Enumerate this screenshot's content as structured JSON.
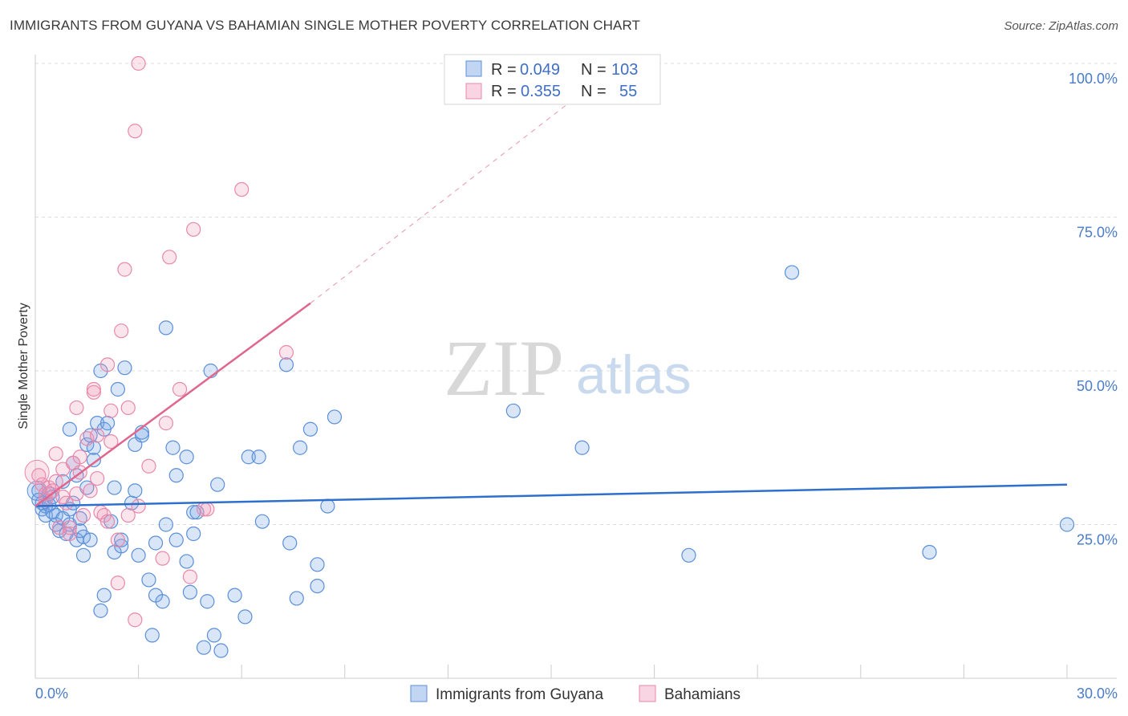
{
  "title": "IMMIGRANTS FROM GUYANA VS BAHAMIAN SINGLE MOTHER POVERTY CORRELATION CHART",
  "source": "Source: ZipAtlas.com",
  "watermark": {
    "zip": "ZIP",
    "atlas": "atlas"
  },
  "colors": {
    "guyana": "#5b8fd8",
    "guyana_fill": "rgba(120,165,230,0.28)",
    "guyana_line": "#2f6fcc",
    "bahamian": "#e888aa",
    "bahamian_fill": "rgba(240,150,185,0.25)",
    "bahamian_line": "#e0668e",
    "grid": "#dddddd",
    "axis": "#cccccc"
  },
  "legend": {
    "row1": {
      "r_label": "R =",
      "r_value": "0.049",
      "n_label": "N =",
      "n_value": "103"
    },
    "row2": {
      "r_label": "R =",
      "r_value": "0.355",
      "n_label": "N =",
      "n_value": "55"
    }
  },
  "chart_data": {
    "type": "scatter",
    "title": "IMMIGRANTS FROM GUYANA VS BAHAMIAN SINGLE MOTHER POVERTY CORRELATION CHART",
    "xlabel": "",
    "ylabel": "Single Mother Poverty",
    "xlim": [
      0,
      30
    ],
    "ylim": [
      0,
      100
    ],
    "x_tick_labels": [
      "0.0%",
      "30.0%"
    ],
    "y_ticks": [
      25,
      50,
      75,
      100
    ],
    "y_tick_labels": [
      "25.0%",
      "50.0%",
      "75.0%",
      "100.0%"
    ],
    "grid": true,
    "series": [
      {
        "name": "Immigrants from Guyana",
        "r": 0.049,
        "n": 103,
        "trend": {
          "x0": 0,
          "y0": 28.0,
          "x1": 30,
          "y1": 31.5
        },
        "points": [
          [
            0.1,
            30.5
          ],
          [
            0.1,
            29.0
          ],
          [
            0.2,
            28.5
          ],
          [
            0.2,
            27.5
          ],
          [
            0.3,
            28.0
          ],
          [
            0.3,
            26.5
          ],
          [
            0.4,
            30.0
          ],
          [
            0.4,
            28.2
          ],
          [
            0.5,
            27.0
          ],
          [
            0.5,
            29.5
          ],
          [
            0.6,
            25.0
          ],
          [
            0.6,
            26.5
          ],
          [
            0.7,
            24.0
          ],
          [
            0.8,
            26.0
          ],
          [
            0.8,
            32.0
          ],
          [
            0.9,
            23.5
          ],
          [
            1.0,
            27.5
          ],
          [
            1.0,
            25.0
          ],
          [
            1.0,
            40.5
          ],
          [
            1.1,
            28.5
          ],
          [
            1.1,
            35.0
          ],
          [
            1.2,
            22.5
          ],
          [
            1.2,
            33.0
          ],
          [
            1.3,
            24.0
          ],
          [
            1.3,
            26.0
          ],
          [
            1.4,
            23.0
          ],
          [
            1.4,
            20.0
          ],
          [
            1.5,
            31.0
          ],
          [
            1.5,
            38.0
          ],
          [
            1.6,
            22.5
          ],
          [
            1.6,
            39.5
          ],
          [
            1.7,
            35.5
          ],
          [
            1.7,
            37.5
          ],
          [
            1.8,
            41.5
          ],
          [
            1.9,
            11.0
          ],
          [
            1.9,
            50.0
          ],
          [
            2.0,
            40.5
          ],
          [
            2.0,
            13.5
          ],
          [
            2.1,
            41.5
          ],
          [
            2.2,
            25.5
          ],
          [
            2.3,
            20.5
          ],
          [
            2.3,
            31.0
          ],
          [
            2.4,
            47.0
          ],
          [
            2.5,
            21.5
          ],
          [
            2.5,
            22.5
          ],
          [
            2.6,
            50.5
          ],
          [
            2.8,
            28.5
          ],
          [
            2.9,
            38.0
          ],
          [
            2.9,
            30.5
          ],
          [
            3.0,
            20.0
          ],
          [
            3.1,
            40.0
          ],
          [
            3.1,
            39.5
          ],
          [
            3.3,
            16.0
          ],
          [
            3.4,
            7.0
          ],
          [
            3.5,
            22.0
          ],
          [
            3.5,
            13.5
          ],
          [
            3.7,
            12.5
          ],
          [
            3.8,
            25.0
          ],
          [
            3.8,
            57.0
          ],
          [
            4.0,
            37.5
          ],
          [
            4.1,
            22.5
          ],
          [
            4.1,
            33.0
          ],
          [
            4.4,
            36.0
          ],
          [
            4.4,
            19.0
          ],
          [
            4.5,
            14.0
          ],
          [
            4.6,
            27.0
          ],
          [
            4.6,
            23.5
          ],
          [
            4.7,
            27.0
          ],
          [
            4.9,
            5.0
          ],
          [
            5.0,
            12.5
          ],
          [
            5.1,
            50.0
          ],
          [
            5.2,
            7.0
          ],
          [
            5.3,
            31.5
          ],
          [
            5.4,
            4.5
          ],
          [
            5.8,
            13.5
          ],
          [
            6.1,
            10.0
          ],
          [
            6.2,
            36.0
          ],
          [
            6.5,
            36.0
          ],
          [
            6.6,
            25.5
          ],
          [
            7.3,
            51.0
          ],
          [
            7.4,
            22.0
          ],
          [
            7.6,
            13.0
          ],
          [
            7.7,
            37.5
          ],
          [
            8.0,
            40.5
          ],
          [
            8.2,
            15.0
          ],
          [
            8.2,
            18.5
          ],
          [
            8.5,
            28.0
          ],
          [
            8.7,
            42.5
          ],
          [
            13.9,
            43.5
          ],
          [
            15.9,
            37.5
          ],
          [
            19.0,
            20.0
          ],
          [
            22.0,
            66.0
          ],
          [
            26.0,
            20.5
          ],
          [
            30.0,
            25.0
          ]
        ]
      },
      {
        "name": "Bahamians",
        "r": 0.355,
        "n": 55,
        "trend": {
          "x0": 0,
          "y0": 28.0,
          "x1": 8,
          "y1": 61.0,
          "dash_to_x": 17,
          "dash_to_y": 100
        },
        "points": [
          [
            0.1,
            33.0
          ],
          [
            0.2,
            31.5
          ],
          [
            0.3,
            30.0
          ],
          [
            0.3,
            29.0
          ],
          [
            0.4,
            31.0
          ],
          [
            0.5,
            30.5
          ],
          [
            0.6,
            32.0
          ],
          [
            0.6,
            36.5
          ],
          [
            0.7,
            24.5
          ],
          [
            0.8,
            29.5
          ],
          [
            0.8,
            34.0
          ],
          [
            0.9,
            28.5
          ],
          [
            1.0,
            23.5
          ],
          [
            1.0,
            24.5
          ],
          [
            1.1,
            35.0
          ],
          [
            1.2,
            44.0
          ],
          [
            1.2,
            30.0
          ],
          [
            1.3,
            33.5
          ],
          [
            1.3,
            36.0
          ],
          [
            1.4,
            26.5
          ],
          [
            1.5,
            39.0
          ],
          [
            1.6,
            30.5
          ],
          [
            1.7,
            47.0
          ],
          [
            1.7,
            46.5
          ],
          [
            1.8,
            39.5
          ],
          [
            1.8,
            32.5
          ],
          [
            1.9,
            27.0
          ],
          [
            2.0,
            26.5
          ],
          [
            2.1,
            25.5
          ],
          [
            2.1,
            51.0
          ],
          [
            2.2,
            38.5
          ],
          [
            2.2,
            43.5
          ],
          [
            2.4,
            22.5
          ],
          [
            2.4,
            15.5
          ],
          [
            2.5,
            56.5
          ],
          [
            2.6,
            66.5
          ],
          [
            2.7,
            26.5
          ],
          [
            2.7,
            44.0
          ],
          [
            2.9,
            9.5
          ],
          [
            2.9,
            89.0
          ],
          [
            3.0,
            100.0
          ],
          [
            3.0,
            28.0
          ],
          [
            3.3,
            34.5
          ],
          [
            3.7,
            19.5
          ],
          [
            3.8,
            41.5
          ],
          [
            3.9,
            68.5
          ],
          [
            4.2,
            47.0
          ],
          [
            4.5,
            16.5
          ],
          [
            4.6,
            73.0
          ],
          [
            4.9,
            27.5
          ],
          [
            5.0,
            27.5
          ],
          [
            6.0,
            79.5
          ],
          [
            7.3,
            53.0
          ]
        ]
      }
    ]
  },
  "bottom_legend": {
    "guyana_label": "Immigrants from Guyana",
    "bahamian_label": "Bahamians"
  }
}
